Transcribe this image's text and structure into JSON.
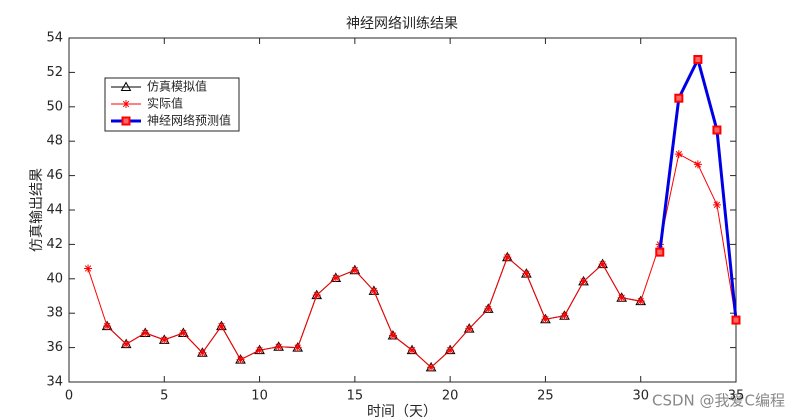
{
  "chart_data": {
    "type": "line",
    "title": "神经网络训练结果",
    "x_label": "时间（天）",
    "y_label": "仿真输出结果",
    "x": [
      1,
      2,
      3,
      4,
      5,
      6,
      7,
      8,
      9,
      10,
      11,
      12,
      13,
      14,
      15,
      16,
      17,
      18,
      19,
      20,
      21,
      22,
      23,
      24,
      25,
      26,
      27,
      28,
      29,
      30,
      31,
      32,
      33,
      34,
      35
    ],
    "series": [
      {
        "name": "仿真模拟值",
        "color": "#000000",
        "marker": "triangle",
        "marker_color": "#000000",
        "line_width": 1,
        "values": [
          null,
          37.25,
          36.2,
          36.85,
          36.45,
          36.85,
          35.7,
          37.25,
          35.3,
          35.85,
          36.05,
          36.0,
          39.05,
          40.05,
          40.5,
          39.3,
          36.7,
          35.85,
          34.85,
          35.85,
          37.1,
          38.25,
          41.25,
          40.3,
          37.65,
          37.85,
          39.85,
          40.85,
          38.9,
          38.7,
          null,
          null,
          null,
          null,
          null
        ]
      },
      {
        "name": "实际值",
        "color": "#ff0000",
        "marker": "star",
        "marker_color": "#ff0000",
        "line_width": 1,
        "values": [
          40.6,
          37.25,
          36.2,
          36.85,
          36.45,
          36.85,
          35.7,
          37.25,
          35.3,
          35.85,
          36.05,
          36.0,
          39.05,
          40.05,
          40.5,
          39.3,
          36.7,
          35.85,
          34.85,
          35.85,
          37.1,
          38.25,
          41.25,
          40.3,
          37.65,
          37.85,
          39.85,
          40.85,
          38.9,
          38.7,
          42.0,
          47.25,
          46.65,
          44.3,
          37.6
        ]
      },
      {
        "name": "神经网络预测值",
        "color": "#0000e6",
        "marker": "square",
        "marker_color": "#ff0000",
        "line_width": 3,
        "values": [
          null,
          null,
          null,
          null,
          null,
          null,
          null,
          null,
          null,
          null,
          null,
          null,
          null,
          null,
          null,
          null,
          null,
          null,
          null,
          null,
          null,
          null,
          null,
          null,
          null,
          null,
          null,
          null,
          null,
          null,
          41.55,
          50.5,
          52.75,
          48.65,
          37.6
        ]
      }
    ],
    "xlim": [
      0,
      35
    ],
    "xticks": [
      0,
      5,
      10,
      15,
      20,
      25,
      30,
      35
    ],
    "ylim": [
      34,
      54
    ],
    "yticks": [
      34,
      36,
      38,
      40,
      42,
      44,
      46,
      48,
      50,
      52,
      54
    ],
    "grid": false,
    "legend": "upper left",
    "watermark": "CSDN @我爱C编程"
  }
}
